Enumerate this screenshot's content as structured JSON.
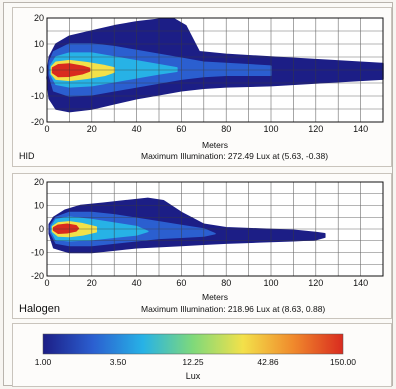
{
  "colorbar": {
    "ticks": [
      "1.00",
      "3.50",
      "12.25",
      "42.86",
      "150.00"
    ],
    "unit": "Lux",
    "colors": [
      "#1c1e86",
      "#2b5fd0",
      "#27b2e6",
      "#7fd97a",
      "#f3e14a",
      "#f08a2c",
      "#d92b1f"
    ]
  },
  "chart_data": [
    {
      "type": "heatmap",
      "label": "HID",
      "xlabel": "Meters",
      "xlim": [
        0,
        150
      ],
      "ylim": [
        -20,
        20
      ],
      "xticks": [
        "0",
        "20",
        "40",
        "60",
        "80",
        "100",
        "120",
        "140"
      ],
      "yticks": [
        "20",
        "10",
        "0",
        "-10",
        "-20"
      ],
      "grid": true,
      "max_text": "Maximum Illumination: 272.49 Lux at (5.63, -0.38)",
      "max_lux": 272.49,
      "max_at": [
        5.63,
        -0.38
      ],
      "contours": [
        {
          "level": "1.00",
          "color": "#1c1e86",
          "points": [
            [
              0,
              -3
            ],
            [
              1,
              -11
            ],
            [
              4,
              -15
            ],
            [
              10,
              -16
            ],
            [
              20,
              -15
            ],
            [
              30,
              -13
            ],
            [
              40,
              -11
            ],
            [
              50,
              -9.5
            ],
            [
              60,
              -8
            ],
            [
              70,
              -7
            ],
            [
              80,
              -6.5
            ],
            [
              100,
              -6
            ],
            [
              120,
              -5
            ],
            [
              140,
              -4
            ],
            [
              150,
              -3.5
            ],
            [
              150,
              2.5
            ],
            [
              140,
              3
            ],
            [
              120,
              4
            ],
            [
              100,
              5
            ],
            [
              90,
              5.5
            ],
            [
              80,
              6
            ],
            [
              68,
              7
            ],
            [
              62,
              17
            ],
            [
              57,
              19.5
            ],
            [
              50,
              19.5
            ],
            [
              40,
              18.5
            ],
            [
              30,
              17
            ],
            [
              20,
              15
            ],
            [
              10,
              13
            ],
            [
              4,
              10
            ],
            [
              1,
              5
            ]
          ]
        },
        {
          "level": "3.50",
          "color": "#2b5fd0",
          "points": [
            [
              1,
              -2
            ],
            [
              3,
              -8
            ],
            [
              10,
              -10
            ],
            [
              20,
              -9.5
            ],
            [
              30,
              -8
            ],
            [
              40,
              -6.5
            ],
            [
              50,
              -5
            ],
            [
              60,
              -3.5
            ],
            [
              70,
              -2.5
            ],
            [
              80,
              -2
            ],
            [
              90,
              -2
            ],
            [
              100,
              -2
            ],
            [
              100,
              1.5
            ],
            [
              90,
              2
            ],
            [
              80,
              2.5
            ],
            [
              70,
              3
            ],
            [
              60,
              4.5
            ],
            [
              50,
              6
            ],
            [
              40,
              7.5
            ],
            [
              30,
              9
            ],
            [
              20,
              10
            ],
            [
              10,
              10
            ],
            [
              3,
              7
            ],
            [
              1,
              3
            ]
          ]
        },
        {
          "level": "12.25",
          "color": "#27b2e6",
          "points": [
            [
              1.5,
              -1.5
            ],
            [
              4,
              -5.5
            ],
            [
              10,
              -6.5
            ],
            [
              20,
              -6
            ],
            [
              30,
              -4.5
            ],
            [
              40,
              -3
            ],
            [
              50,
              -1.5
            ],
            [
              58,
              -0.5
            ],
            [
              58,
              0.8
            ],
            [
              50,
              2
            ],
            [
              40,
              3.5
            ],
            [
              30,
              5
            ],
            [
              20,
              6.5
            ],
            [
              10,
              6.5
            ],
            [
              4,
              5
            ],
            [
              1.5,
              1.5
            ]
          ]
        },
        {
          "level": "42.86",
          "color": "#f3e14a",
          "points": [
            [
              2,
              -1.5
            ],
            [
              4,
              -3.5
            ],
            [
              10,
              -4
            ],
            [
              18,
              -3.2
            ],
            [
              26,
              -2
            ],
            [
              30,
              -0.8
            ],
            [
              30,
              0.8
            ],
            [
              26,
              1.6
            ],
            [
              18,
              2.8
            ],
            [
              10,
              3.6
            ],
            [
              4,
              3
            ],
            [
              2,
              1.2
            ]
          ]
        },
        {
          "level": "150.00",
          "color": "#d92b1f",
          "points": [
            [
              2.5,
              -1
            ],
            [
              5,
              -2.5
            ],
            [
              10,
              -2.4
            ],
            [
              16,
              -1.4
            ],
            [
              19,
              -0.4
            ],
            [
              19,
              0.6
            ],
            [
              16,
              1.4
            ],
            [
              10,
              2.3
            ],
            [
              5,
              2
            ],
            [
              2.5,
              0.8
            ]
          ]
        }
      ]
    },
    {
      "type": "heatmap",
      "label": "Halogen",
      "xlabel": "Meters",
      "xlim": [
        0,
        150
      ],
      "ylim": [
        -20,
        20
      ],
      "xticks": [
        "0",
        "20",
        "40",
        "60",
        "80",
        "100",
        "120",
        "140"
      ],
      "yticks": [
        "20",
        "10",
        "0",
        "-10",
        "-20"
      ],
      "grid": true,
      "max_text": "Maximum Illumination: 218.96 Lux at (8.63, 0.88)",
      "max_lux": 218.96,
      "max_at": [
        8.63,
        0.88
      ],
      "contours": [
        {
          "level": "1.00",
          "color": "#1c1e86",
          "points": [
            [
              1,
              -2
            ],
            [
              3,
              -8
            ],
            [
              10,
              -10
            ],
            [
              20,
              -10
            ],
            [
              30,
              -9
            ],
            [
              40,
              -8
            ],
            [
              50,
              -7.5
            ],
            [
              60,
              -7
            ],
            [
              70,
              -6.5
            ],
            [
              80,
              -6
            ],
            [
              95,
              -5.5
            ],
            [
              110,
              -5
            ],
            [
              120,
              -4.5
            ],
            [
              124,
              -3.5
            ],
            [
              124,
              -2
            ],
            [
              120,
              -1.5
            ],
            [
              110,
              -0.5
            ],
            [
              95,
              0
            ],
            [
              80,
              0.5
            ],
            [
              70,
              2
            ],
            [
              60,
              7
            ],
            [
              52,
              12
            ],
            [
              45,
              13
            ],
            [
              35,
              12
            ],
            [
              25,
              11
            ],
            [
              15,
              10
            ],
            [
              8,
              8
            ],
            [
              3,
              5
            ],
            [
              1,
              2
            ]
          ]
        },
        {
          "level": "3.50",
          "color": "#2b5fd0",
          "points": [
            [
              1.5,
              -1.5
            ],
            [
              4,
              -6
            ],
            [
              10,
              -7
            ],
            [
              20,
              -7
            ],
            [
              30,
              -6
            ],
            [
              40,
              -5
            ],
            [
              50,
              -4
            ],
            [
              60,
              -3.5
            ],
            [
              70,
              -3
            ],
            [
              75,
              -2
            ],
            [
              70,
              0
            ],
            [
              60,
              1.5
            ],
            [
              50,
              3
            ],
            [
              40,
              4.5
            ],
            [
              30,
              6
            ],
            [
              20,
              7
            ],
            [
              10,
              7
            ],
            [
              4,
              5
            ],
            [
              1.5,
              1.5
            ]
          ]
        },
        {
          "level": "12.25",
          "color": "#27b2e6",
          "points": [
            [
              2,
              -1
            ],
            [
              4,
              -4.5
            ],
            [
              10,
              -5
            ],
            [
              20,
              -4.5
            ],
            [
              30,
              -3.5
            ],
            [
              40,
              -2.5
            ],
            [
              45,
              -1
            ],
            [
              40,
              1
            ],
            [
              30,
              2.5
            ],
            [
              20,
              4
            ],
            [
              10,
              5
            ],
            [
              4,
              4
            ],
            [
              2,
              1
            ]
          ]
        },
        {
          "level": "42.86",
          "color": "#f3e14a",
          "points": [
            [
              2.5,
              -1
            ],
            [
              5,
              -3
            ],
            [
              10,
              -3.2
            ],
            [
              16,
              -2.5
            ],
            [
              22,
              -1.2
            ],
            [
              22,
              0.8
            ],
            [
              16,
              2.2
            ],
            [
              10,
              3
            ],
            [
              5,
              2.6
            ],
            [
              2.5,
              1
            ]
          ]
        },
        {
          "level": "150.00",
          "color": "#d92b1f",
          "points": [
            [
              3,
              -0.5
            ],
            [
              5,
              -1.8
            ],
            [
              9,
              -1.6
            ],
            [
              13,
              -0.8
            ],
            [
              14,
              0.2
            ],
            [
              13,
              1.4
            ],
            [
              9,
              2
            ],
            [
              5,
              1.6
            ],
            [
              3,
              0.6
            ]
          ]
        }
      ]
    }
  ]
}
